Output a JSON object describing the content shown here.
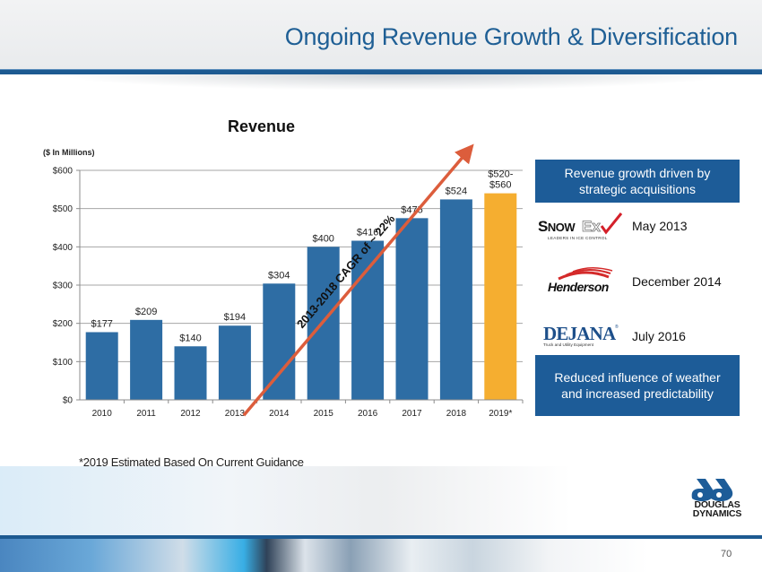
{
  "slide": {
    "title": "Ongoing Revenue Growth & Diversification",
    "page_number": "70",
    "footnote": "*2019 Estimated Based On Current Guidance",
    "company_logo": {
      "line1": "DOUGLAS",
      "line2": "DYNAMICS"
    },
    "colors": {
      "brand_blue": "#1d5c98",
      "bar_blue": "#2e6da4",
      "estimate_orange": "#f5ae30",
      "arrow_red": "#dc5d3c"
    }
  },
  "chart_data": {
    "type": "bar",
    "title": "Revenue",
    "ylabel": "($ In Millions)",
    "xlabel": "",
    "categories": [
      "2010",
      "2011",
      "2012",
      "2013",
      "2014",
      "2015",
      "2016",
      "2017",
      "2018",
      "2019*"
    ],
    "values": [
      177,
      209,
      140,
      194,
      304,
      400,
      416,
      475,
      524,
      540
    ],
    "data_labels": [
      "$177",
      "$209",
      "$140",
      "$194",
      "$304",
      "$400",
      "$416",
      "$475",
      "$524",
      "$520-\n$560"
    ],
    "estimate_range": {
      "category": "2019*",
      "low": 520,
      "high": 560
    },
    "bar_colors": [
      "#2e6da4",
      "#2e6da4",
      "#2e6da4",
      "#2e6da4",
      "#2e6da4",
      "#2e6da4",
      "#2e6da4",
      "#2e6da4",
      "#2e6da4",
      "#f5ae30"
    ],
    "ylim": [
      0,
      600
    ],
    "yticks": [
      0,
      100,
      200,
      300,
      400,
      500,
      600
    ],
    "ytick_labels": [
      "$0",
      "$100",
      "$200",
      "$300",
      "$400",
      "$500",
      "$600"
    ],
    "grid": true,
    "legend": "none",
    "annotation": {
      "text": "2013-2018 CAGR of  ~ 22%",
      "type": "trend-arrow",
      "from_category": "2013",
      "to_category": "2019*"
    }
  },
  "sidebar": {
    "headline": "Revenue growth driven by strategic acquisitions",
    "acquisitions": [
      {
        "logo": "SnowEx",
        "logo_tagline": "LEADERS IN ICE CONTROL",
        "date": "May 2013"
      },
      {
        "logo": "Henderson",
        "date": "December 2014"
      },
      {
        "logo": "DEJANA",
        "logo_tagline": "Truck and Utility Equipment",
        "date": "July 2016"
      }
    ],
    "conclusion": "Reduced influence of weather and increased predictability"
  }
}
